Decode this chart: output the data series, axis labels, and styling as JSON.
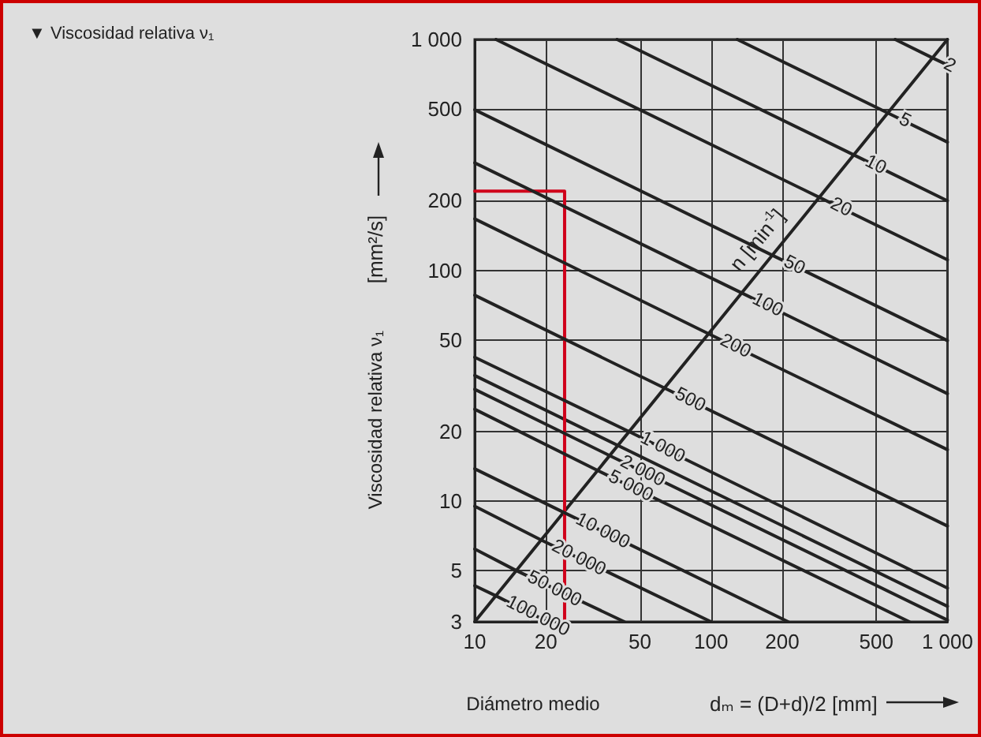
{
  "chart_data": {
    "type": "line",
    "title": "▼ Viscosidad relativa ν₁",
    "xlabel": "Diámetro medio",
    "ylabel": "Viscosidad relativa ν₁",
    "log": "xy",
    "grid": true,
    "marker": "none",
    "line_style": "solid",
    "xlim": [
      10,
      1000
    ],
    "xticks": [
      10,
      20,
      50,
      100,
      200,
      500,
      {
        "value": 1000,
        "label": "1 000"
      }
    ],
    "ylim": [
      3,
      1000
    ],
    "yticks": [
      3,
      5,
      10,
      20,
      50,
      100,
      200,
      500,
      {
        "value": 1000,
        "label": "1 000"
      }
    ],
    "annotations": [
      "[mm²/s]",
      "dₘ = (D+d)/2 [mm]",
      "n [min$^{-1}$]"
    ],
    "series": [
      {
        "name": "2",
        "color": "#222222",
        "x": [
          601,
          865,
          1000
        ],
        "values": [
          1000,
          832,
          775
        ]
      },
      {
        "name": "5",
        "color": "#222222",
        "x": [
          129,
          560,
          1000
        ],
        "values": [
          1000,
          480,
          359
        ]
      },
      {
        "name": "10",
        "color": "#222222",
        "x": [
          40,
          402,
          1000
        ],
        "values": [
          1000,
          316,
          200
        ]
      },
      {
        "name": "20",
        "color": "#222222",
        "x": [
          12.3,
          287,
          1000
        ],
        "values": [
          1000,
          207,
          111
        ]
      },
      {
        "name": "50",
        "color": "#222222",
        "x": [
          10,
          182,
          1000
        ],
        "values": [
          496,
          116,
          49.6
        ]
      },
      {
        "name": "100",
        "color": "#222222",
        "x": [
          10,
          134,
          1000
        ],
        "values": [
          292,
          80,
          29.2
        ]
      },
      {
        "name": "200",
        "color": "#222222",
        "x": [
          10,
          98,
          1000
        ],
        "values": [
          167,
          53,
          16.7
        ]
      },
      {
        "name": "500",
        "color": "#222222",
        "x": [
          10,
          63,
          1000
        ],
        "values": [
          78,
          31,
          7.8
        ]
      },
      {
        "name": "1 000",
        "color": "#222222",
        "x": [
          10,
          45,
          1000
        ],
        "values": [
          42,
          20,
          4.2
        ]
      },
      {
        "color": "#222222",
        "x": [
          10,
          1000
        ],
        "values": [
          35,
          3.5
        ]
      },
      {
        "name": "2 000",
        "color": "#222222",
        "x": [
          10,
          37,
          1000
        ],
        "values": [
          30.5,
          15.8,
          3.05
        ]
      },
      {
        "name": "5 000",
        "color": "#222222",
        "x": [
          10,
          33,
          690
        ],
        "values": [
          25,
          13.6,
          3
        ]
      },
      {
        "name": "10 000",
        "color": "#222222",
        "x": [
          10,
          24,
          212
        ],
        "values": [
          13.8,
          8.9,
          3
        ]
      },
      {
        "name": "20 000",
        "color": "#222222",
        "x": [
          10,
          19,
          100
        ],
        "values": [
          9.5,
          6.8,
          3
        ]
      },
      {
        "name": "50 000",
        "color": "#222222",
        "x": [
          10,
          15,
          43
        ],
        "values": [
          6.2,
          5,
          3
        ]
      },
      {
        "name": "100 000",
        "color": "#222222",
        "x": [
          10,
          12.2,
          20.4
        ],
        "values": [
          4.3,
          3.9,
          3
        ]
      },
      {
        "color": "#222222",
        "x": [
          10,
          1000
        ],
        "values": [
          3,
          1000
        ]
      },
      {
        "color": "#d0021b",
        "x": [
          10,
          24,
          24
        ],
        "values": [
          220,
          220,
          3
        ]
      }
    ]
  }
}
